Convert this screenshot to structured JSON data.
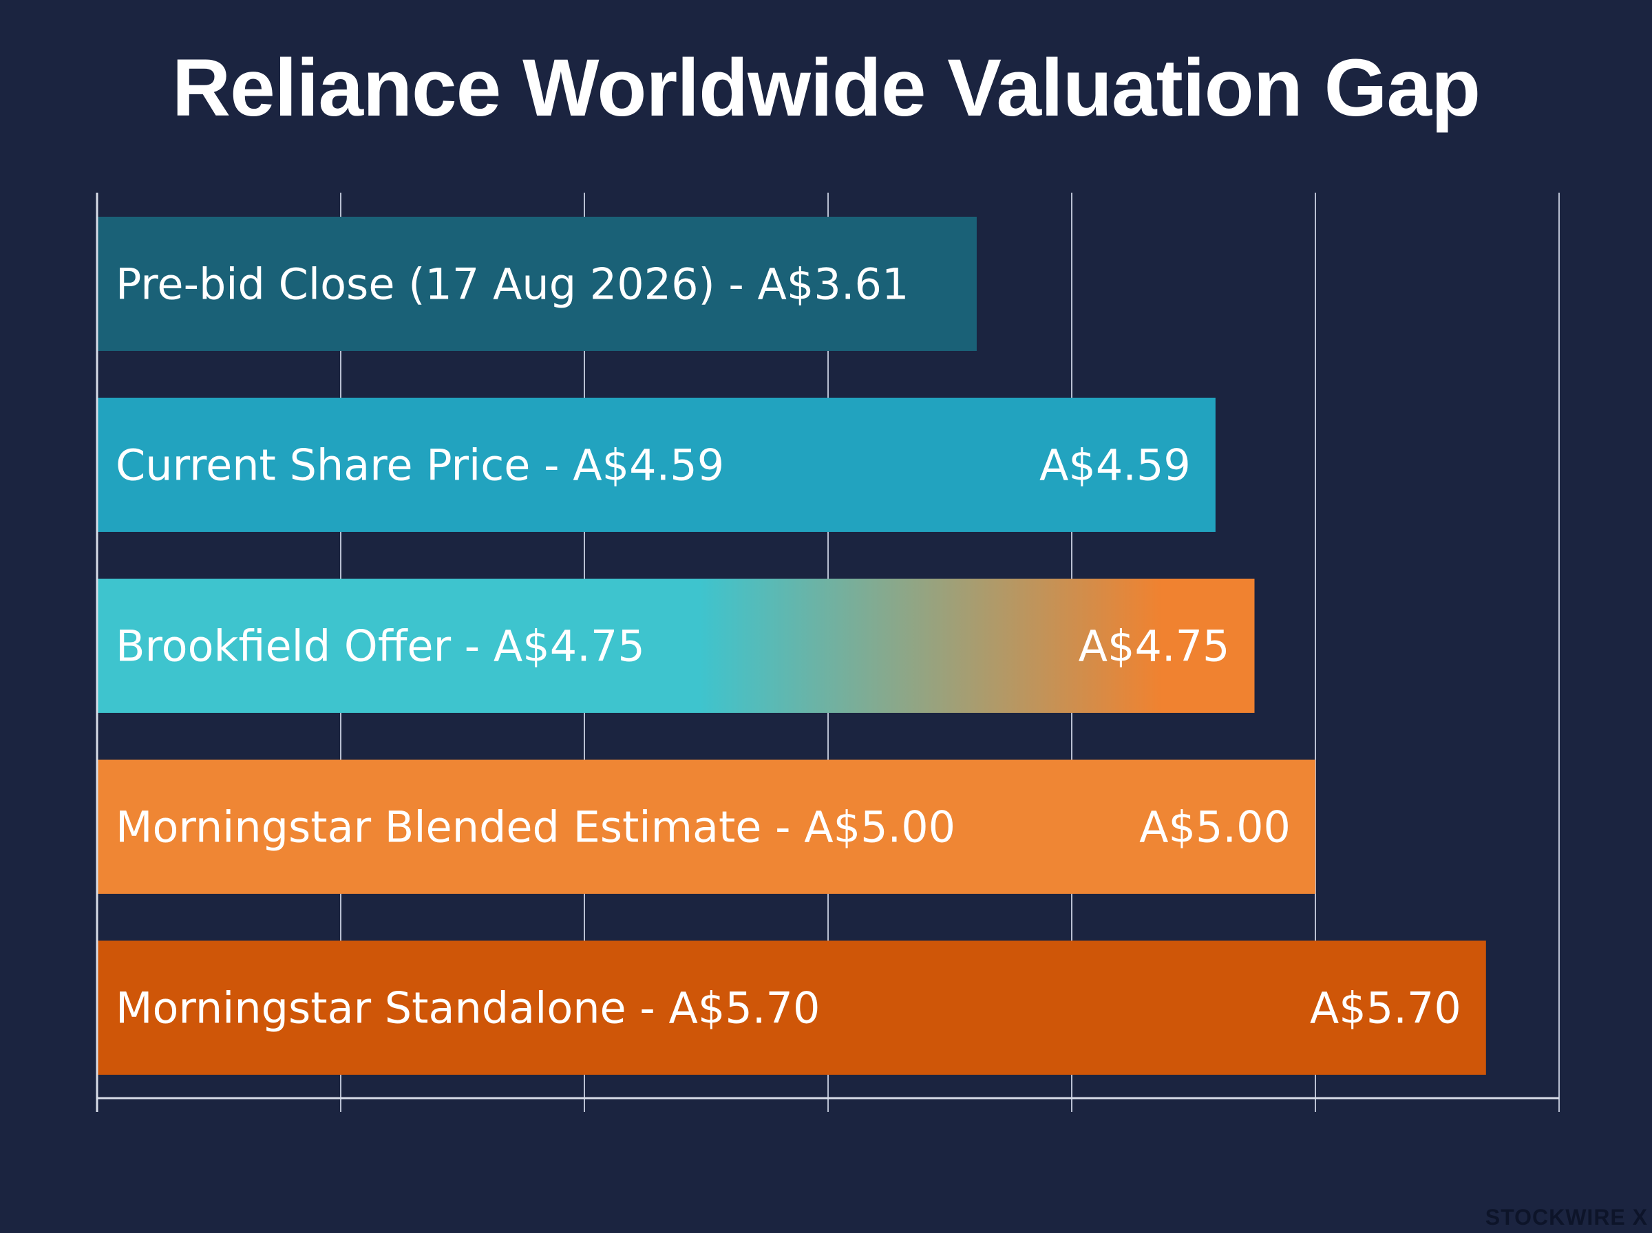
{
  "chart_data": {
    "type": "bar",
    "orientation": "horizontal",
    "title": "Reliance Worldwide Valuation Gap",
    "xlabel": "",
    "ylabel": "",
    "grid": true,
    "xlim": [
      0,
      6.0
    ],
    "categories": [
      "Pre-bid Close (17 Aug 2026)  - A$3.61",
      "Current Share Price - A$4.59",
      "Brookfield Offer - A$4.75",
      "Morningstar Blended Estimate - A$5.00",
      "Morningstar Standalone - A$5.70"
    ],
    "values": [
      3.61,
      4.59,
      4.75,
      5.0,
      5.7
    ],
    "value_labels": [
      "",
      "A$4.59",
      "A$4.75",
      "A$5.00",
      "A$5.70"
    ],
    "colors": [
      [
        "#1a6177",
        "#1a6177"
      ],
      [
        "#22a3bf",
        "#22a3bf"
      ],
      [
        "#3ec4ce",
        "#f08230"
      ],
      [
        "#ef8634",
        "#ef8634"
      ],
      [
        "#cf5608",
        "#cf5608"
      ]
    ]
  },
  "watermark": "STOCKWIRE X"
}
